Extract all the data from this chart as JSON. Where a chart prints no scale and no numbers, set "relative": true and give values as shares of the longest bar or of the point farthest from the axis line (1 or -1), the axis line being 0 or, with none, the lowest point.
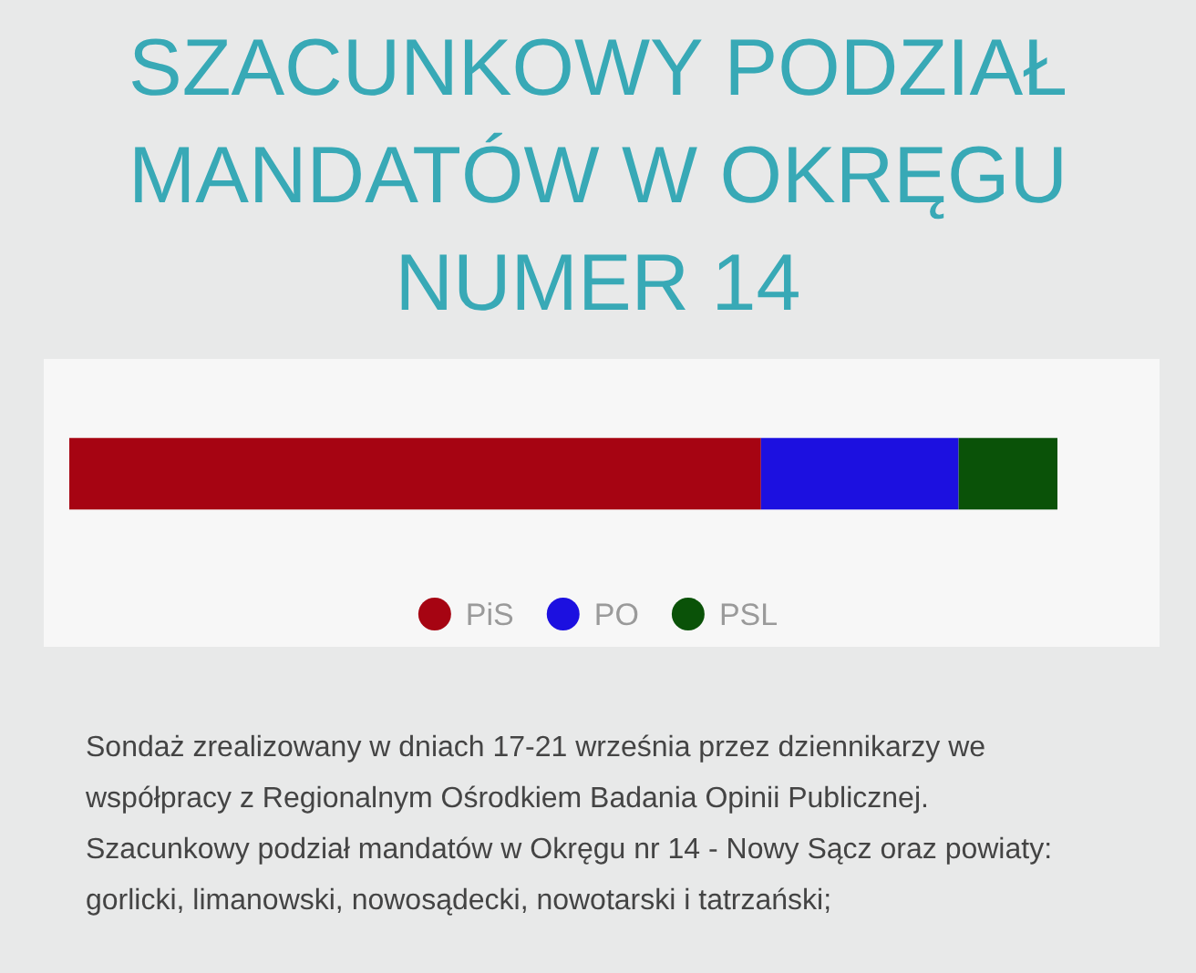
{
  "chart_data": {
    "type": "bar",
    "title": "SZACUNKOWY PODZIAŁ MANDATÓW W OKRĘGU NUMER 14",
    "categories": [
      null
    ],
    "orientation": "horizontal",
    "stacked": true,
    "relative": true,
    "series": [
      {
        "name": "PiS",
        "color": "#a60412",
        "values": [
          0.7
        ]
      },
      {
        "name": "PO",
        "color": "#1c10e0",
        "values": [
          0.2
        ]
      },
      {
        "name": "PSL",
        "color": "#0a5208",
        "values": [
          0.1
        ]
      }
    ],
    "legend": "bottom",
    "annotations": [
      "Sondaż zrealizowany w dniach 17-21 września przez dziennikarzy we współpracy z Regionalnym Ośrodkiem Badania Opinii Publicznej. Szacunkowy podział mandatów w Okręgu nr 14 - Nowy Sącz oraz powiaty: gorlicki, limanowski, nowosądecki, nowotarski i tatrzański;"
    ]
  }
}
